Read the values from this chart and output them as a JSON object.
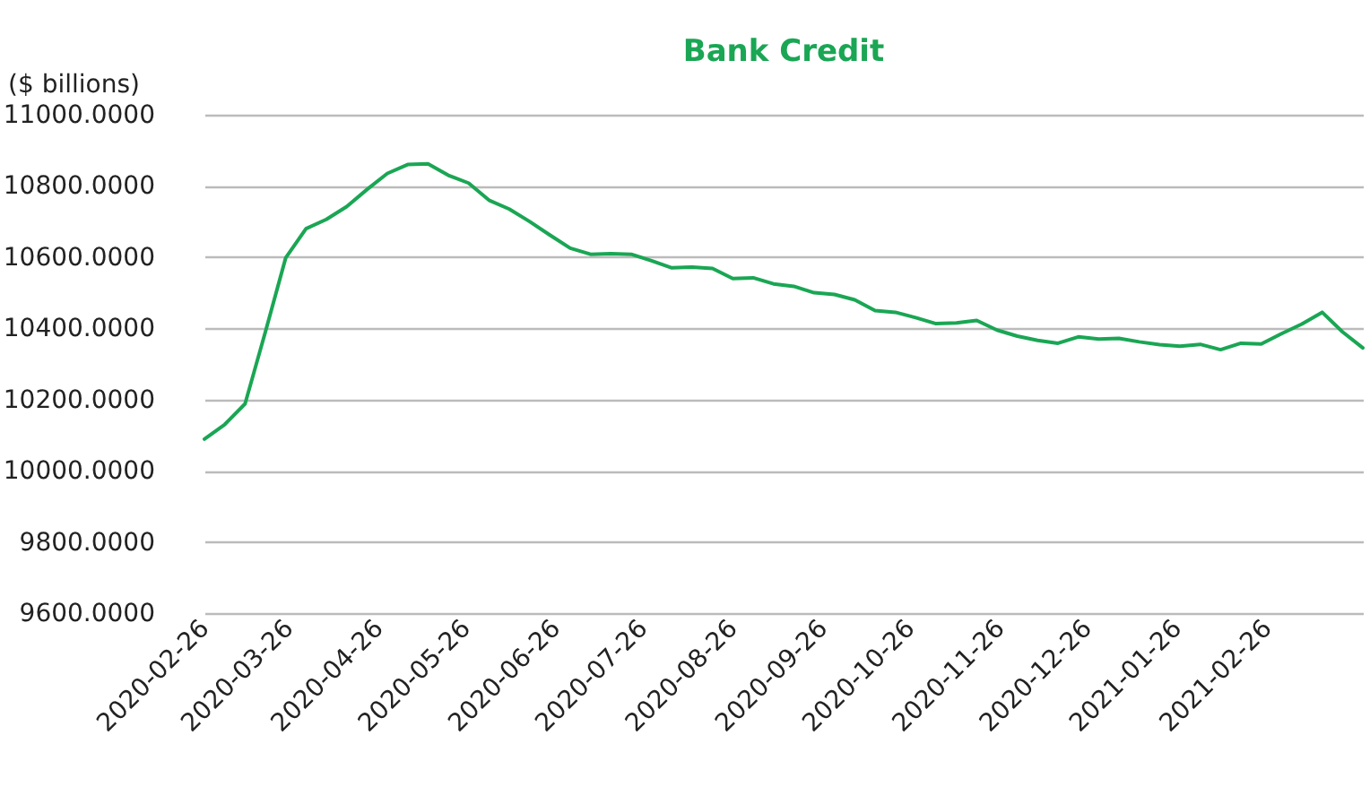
{
  "chart_data": {
    "type": "line",
    "title": "Bank Credit",
    "ylabel": "($ billions)",
    "x": [
      "2020-02-26",
      "2020-03-04",
      "2020-03-11",
      "2020-03-18",
      "2020-03-25",
      "2020-04-01",
      "2020-04-08",
      "2020-04-15",
      "2020-04-22",
      "2020-04-29",
      "2020-05-06",
      "2020-05-13",
      "2020-05-20",
      "2020-05-27",
      "2020-06-03",
      "2020-06-10",
      "2020-06-17",
      "2020-06-24",
      "2020-07-01",
      "2020-07-08",
      "2020-07-15",
      "2020-07-22",
      "2020-07-29",
      "2020-08-05",
      "2020-08-12",
      "2020-08-19",
      "2020-08-26",
      "2020-09-02",
      "2020-09-09",
      "2020-09-16",
      "2020-09-23",
      "2020-09-30",
      "2020-10-07",
      "2020-10-14",
      "2020-10-21",
      "2020-10-28",
      "2020-11-04",
      "2020-11-11",
      "2020-11-18",
      "2020-11-25",
      "2020-12-02",
      "2020-12-09",
      "2020-12-16",
      "2020-12-23",
      "2020-12-30",
      "2021-01-06",
      "2021-01-13",
      "2021-01-20",
      "2021-01-27",
      "2021-02-03",
      "2021-02-10",
      "2021-02-17",
      "2021-02-24",
      "2021-03-03",
      "2021-03-10",
      "2021-03-17",
      "2021-03-24",
      "2021-03-31"
    ],
    "series": [
      {
        "color": "#1aa654",
        "values": [
          10089,
          10130,
          10188,
          10390,
          10598,
          10680,
          10706,
          10742,
          10790,
          10835,
          10860,
          10862,
          10830,
          10808,
          10760,
          10735,
          10700,
          10662,
          10625,
          10608,
          10610,
          10608,
          10590,
          10570,
          10572,
          10568,
          10540,
          10542,
          10525,
          10518,
          10500,
          10495,
          10480,
          10450,
          10445,
          10430,
          10413,
          10415,
          10422,
          10395,
          10378,
          10366,
          10358,
          10376,
          10370,
          10372,
          10362,
          10354,
          10350,
          10355,
          10340,
          10358,
          10356,
          10385,
          10412,
          10445,
          10390,
          10345
        ]
      }
    ],
    "xlim": [
      "2020-02-26",
      "2021-03-31"
    ],
    "xticks": [
      "2020-02-26",
      "2020-03-26",
      "2020-04-26",
      "2020-05-26",
      "2020-06-26",
      "2020-07-26",
      "2020-08-26",
      "2020-09-26",
      "2020-10-26",
      "2020-11-26",
      "2020-12-26",
      "2021-01-26",
      "2021-02-26"
    ],
    "ylim": [
      9600,
      11000
    ],
    "yticks": [
      {
        "value": 9600,
        "label": "9600.0000"
      },
      {
        "value": 9800,
        "label": "9800.0000"
      },
      {
        "value": 10000,
        "label": "10000.0000"
      },
      {
        "value": 10200,
        "label": "10200.0000"
      },
      {
        "value": 10400,
        "label": "10400.0000"
      },
      {
        "value": 10600,
        "label": "10600.0000"
      },
      {
        "value": 10800,
        "label": "10800.0000"
      },
      {
        "value": 11000,
        "label": "11000.0000"
      }
    ],
    "grid": "y",
    "marker": "none",
    "line_style": "solid"
  }
}
